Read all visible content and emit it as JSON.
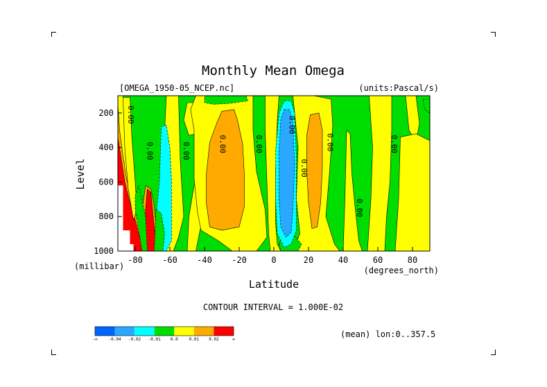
{
  "chart_data": {
    "type": "heatmap",
    "title": "Monthly Mean Omega",
    "dataset_label": "[OMEGA_1950-05_NCEP.nc]",
    "units_label": "(units:Pascal/s)",
    "xlabel": "Latitude",
    "ylabel": "Level",
    "x_unit": "(degrees_north)",
    "y_unit": "(millibar)",
    "xlim": [
      -90,
      90
    ],
    "ylim": [
      1000,
      100
    ],
    "x_ticks": [
      -80,
      -60,
      -40,
      -20,
      0,
      20,
      40,
      60,
      80
    ],
    "x_tick_labels": [
      "-80",
      "-60",
      "-40",
      "-20",
      "0",
      "20",
      "40",
      "60",
      "80"
    ],
    "y_ticks": [
      200,
      400,
      600,
      800,
      1000
    ],
    "y_tick_labels": [
      "200",
      "400",
      "600",
      "800",
      "1000"
    ],
    "contour_interval_text": "CONTOUR INTERVAL = 1.000E-02",
    "mean_note": "(mean) lon:0..357.5",
    "contour_labels": [
      "0.00"
    ],
    "colorbar": {
      "colors": [
        "#0064ff",
        "#2aa8ff",
        "#00ffff",
        "#00dd00",
        "#ffff00",
        "#ffaa00",
        "#ff0000"
      ],
      "labels": [
        "-∞",
        "-0.04",
        "-0.02",
        "-0.01",
        "0.0",
        "0.01",
        "0.02",
        "∞"
      ]
    },
    "background_color": "#00dd00",
    "regions": [
      {
        "value": 0.005,
        "color": "#ffff00",
        "poly": [
          [
            -90,
            100
          ],
          [
            -87,
            100
          ],
          [
            -86,
            230
          ],
          [
            -84,
            420
          ],
          [
            -82,
            560
          ],
          [
            -80,
            680
          ],
          [
            -77,
            780
          ],
          [
            -74,
            870
          ],
          [
            -71,
            960
          ],
          [
            -70,
            1000
          ],
          [
            -90,
            1000
          ]
        ]
      },
      {
        "value": 0.015,
        "color": "#ffaa00",
        "poly": [
          [
            -90,
            150
          ],
          [
            -89,
            300
          ],
          [
            -87,
            450
          ],
          [
            -85,
            580
          ],
          [
            -82,
            700
          ],
          [
            -79,
            810
          ],
          [
            -76,
            900
          ],
          [
            -73,
            990
          ],
          [
            -73,
            1000
          ],
          [
            -90,
            1000
          ]
        ]
      },
      {
        "value": 0.025,
        "color": "#ff0000",
        "poly": [
          [
            -90,
            340
          ],
          [
            -88,
            470
          ],
          [
            -86,
            600
          ],
          [
            -83,
            720
          ],
          [
            -80,
            820
          ],
          [
            -78,
            900
          ],
          [
            -76,
            960
          ],
          [
            -75,
            1000
          ],
          [
            -90,
            1000
          ]
        ]
      },
      {
        "value": 0.015,
        "color": "#ffaa00",
        "poly": [
          [
            -74,
            620
          ],
          [
            -71,
            640
          ],
          [
            -69,
            740
          ],
          [
            -68,
            860
          ],
          [
            -67,
            960
          ],
          [
            -68,
            1000
          ],
          [
            -74,
            1000
          ],
          [
            -76,
            930
          ],
          [
            -76,
            760
          ]
        ]
      },
      {
        "value": 0.025,
        "color": "#ff0000",
        "poly": [
          [
            -73,
            640
          ],
          [
            -71,
            660
          ],
          [
            -70,
            760
          ],
          [
            -69,
            860
          ],
          [
            -68,
            950
          ],
          [
            -69,
            1000
          ],
          [
            -73,
            1000
          ],
          [
            -74,
            900
          ],
          [
            -74,
            760
          ]
        ]
      },
      {
        "value": 0.005,
        "color": "#ffff00",
        "poly": [
          [
            -87,
            110
          ],
          [
            -83,
            110
          ],
          [
            -82,
            330
          ],
          [
            -80,
            600
          ],
          [
            -79,
            760
          ],
          [
            -81,
            820
          ],
          [
            -84,
            640
          ],
          [
            -86,
            400
          ]
        ]
      },
      {
        "value": -0.005,
        "color": "#00dd00",
        "poly": [
          [
            -80,
            680
          ],
          [
            -78,
            620
          ],
          [
            -76,
            700
          ],
          [
            -74,
            800
          ],
          [
            -73,
            1000
          ],
          [
            -76,
            1000
          ],
          [
            -78,
            880
          ],
          [
            -80,
            760
          ]
        ]
      },
      {
        "value": 0.005,
        "color": "#ffff00",
        "poly": [
          [
            -62,
            100
          ],
          [
            -55,
            100
          ],
          [
            -54,
            480
          ],
          [
            -52,
            800
          ],
          [
            -55,
            920
          ],
          [
            -58,
            1000
          ],
          [
            -62,
            1000
          ],
          [
            -62,
            600
          ],
          [
            -63,
            300
          ]
        ]
      },
      {
        "value": 0.005,
        "color": "#ffff00",
        "poly": [
          [
            -50,
            140
          ],
          [
            -42,
            140
          ],
          [
            -41,
            250
          ],
          [
            -44,
            320
          ],
          [
            -49,
            330
          ],
          [
            -52,
            240
          ]
        ]
      },
      {
        "value": 0.005,
        "color": "#ffff00",
        "poly": [
          [
            -46,
            620
          ],
          [
            -43,
            600
          ],
          [
            -41,
            800
          ],
          [
            -45,
            1000
          ],
          [
            -50,
            1000
          ],
          [
            -49,
            800
          ]
        ]
      },
      {
        "value": -0.015,
        "color": "#00ffff",
        "poly": [
          [
            -65,
            280
          ],
          [
            -62,
            270
          ],
          [
            -60,
            400
          ],
          [
            -59,
            600
          ],
          [
            -59,
            800
          ],
          [
            -59,
            940
          ],
          [
            -62,
            1000
          ],
          [
            -65,
            1000
          ],
          [
            -67,
            950
          ],
          [
            -68,
            800
          ],
          [
            -66,
            600
          ]
        ]
      },
      {
        "value": -0.005,
        "color": "#00dd00",
        "poly": [
          [
            -68,
            760
          ],
          [
            -65,
            780
          ],
          [
            -63,
            900
          ],
          [
            -64,
            1000
          ],
          [
            -69,
            1000
          ]
        ]
      },
      {
        "value": 0.005,
        "color": "#ffff00",
        "poly": [
          [
            -45,
            100
          ],
          [
            -12,
            100
          ],
          [
            -12,
            300
          ],
          [
            -10,
            540
          ],
          [
            -5,
            760
          ],
          [
            -4,
            920
          ],
          [
            -10,
            1000
          ],
          [
            -24,
            1000
          ],
          [
            -32,
            940
          ],
          [
            -42,
            880
          ],
          [
            -44,
            780
          ],
          [
            -46,
            580
          ],
          [
            -46,
            300
          ],
          [
            -48,
            180
          ]
        ]
      },
      {
        "value": -0.005,
        "color": "#00dd00",
        "poly": [
          [
            -40,
            100
          ],
          [
            -16,
            100
          ],
          [
            -15,
            130
          ],
          [
            -26,
            145
          ],
          [
            -35,
            150
          ],
          [
            -40,
            140
          ]
        ]
      },
      {
        "value": 0.015,
        "color": "#ffaa00",
        "poly": [
          [
            -30,
            190
          ],
          [
            -23,
            180
          ],
          [
            -21,
            240
          ],
          [
            -18,
            380
          ],
          [
            -17,
            560
          ],
          [
            -17,
            740
          ],
          [
            -20,
            860
          ],
          [
            -30,
            880
          ],
          [
            -37,
            860
          ],
          [
            -39,
            720
          ],
          [
            -39,
            560
          ],
          [
            -37,
            370
          ],
          [
            -33,
            260
          ]
        ]
      },
      {
        "value": 0.005,
        "color": "#ffff00",
        "poly": [
          [
            -5,
            100
          ],
          [
            3,
            100
          ],
          [
            2,
            240
          ],
          [
            1,
            520
          ],
          [
            1,
            840
          ],
          [
            2,
            960
          ],
          [
            4,
            1000
          ],
          [
            -2,
            1000
          ],
          [
            -3,
            900
          ],
          [
            -4,
            600
          ],
          [
            -5,
            300
          ]
        ]
      },
      {
        "value": 0.005,
        "color": "#ffff00",
        "poly": [
          [
            11,
            100
          ],
          [
            23,
            100
          ],
          [
            33,
            120
          ],
          [
            34,
            270
          ],
          [
            32,
            560
          ],
          [
            30,
            800
          ],
          [
            35,
            960
          ],
          [
            38,
            1000
          ],
          [
            11,
            1000
          ],
          [
            15,
            900
          ],
          [
            13,
            700
          ],
          [
            14,
            400
          ]
        ]
      },
      {
        "value": 0.015,
        "color": "#ffaa00",
        "poly": [
          [
            21,
            210
          ],
          [
            26,
            200
          ],
          [
            28,
            300
          ],
          [
            28,
            520
          ],
          [
            27,
            720
          ],
          [
            25,
            860
          ],
          [
            22,
            870
          ],
          [
            20,
            720
          ],
          [
            19,
            540
          ],
          [
            19,
            330
          ]
        ]
      },
      {
        "value": -0.005,
        "color": "#00dd00",
        "poly": [
          [
            3,
            960
          ],
          [
            5,
            900
          ],
          [
            10,
            890
          ],
          [
            16,
            960
          ],
          [
            14,
            1000
          ],
          [
            4,
            1000
          ]
        ]
      },
      {
        "value": -0.015,
        "color": "#00ffff",
        "poly": [
          [
            6,
            130
          ],
          [
            10,
            130
          ],
          [
            12,
            200
          ],
          [
            13,
            460
          ],
          [
            13,
            700
          ],
          [
            13,
            880
          ],
          [
            10,
            960
          ],
          [
            6,
            980
          ],
          [
            2,
            900
          ],
          [
            1,
            700
          ],
          [
            1,
            420
          ],
          [
            3,
            200
          ]
        ]
      },
      {
        "value": -0.03,
        "color": "#2aa8ff",
        "poly": [
          [
            6,
            180
          ],
          [
            9,
            180
          ],
          [
            11,
            260
          ],
          [
            12,
            500
          ],
          [
            11,
            760
          ],
          [
            10,
            890
          ],
          [
            7,
            920
          ],
          [
            4,
            860
          ],
          [
            3,
            700
          ],
          [
            3,
            420
          ],
          [
            4,
            240
          ]
        ]
      },
      {
        "value": 0.005,
        "color": "#ffff00",
        "poly": [
          [
            42,
            300
          ],
          [
            44,
            320
          ],
          [
            45,
            550
          ],
          [
            47,
            760
          ],
          [
            49,
            940
          ],
          [
            51,
            1000
          ],
          [
            40,
            1000
          ],
          [
            41,
            700
          ]
        ]
      },
      {
        "value": 0.005,
        "color": "#ffff00",
        "poly": [
          [
            55,
            100
          ],
          [
            68,
            100
          ],
          [
            68,
            300
          ],
          [
            67,
            600
          ],
          [
            65,
            800
          ],
          [
            64,
            1000
          ],
          [
            54,
            1000
          ],
          [
            56,
            700
          ],
          [
            57,
            400
          ]
        ]
      },
      {
        "value": 0.005,
        "color": "#ffff00",
        "poly": [
          [
            76,
            100
          ],
          [
            82,
            100
          ],
          [
            84,
            260
          ],
          [
            82,
            370
          ],
          [
            78,
            300
          ]
        ]
      },
      {
        "value": 0.005,
        "color": "#ffff00",
        "poly": [
          [
            73,
            340
          ],
          [
            82,
            320
          ],
          [
            90,
            360
          ],
          [
            90,
            1000
          ],
          [
            70,
            1000
          ],
          [
            72,
            700
          ]
        ]
      },
      {
        "value": -0.005,
        "color": "#00dd00",
        "poly": [
          [
            86,
            120
          ],
          [
            90,
            120
          ],
          [
            90,
            200
          ],
          [
            87,
            180
          ]
        ]
      }
    ],
    "blank_cells": [
      {
        "lon0": -90,
        "lon1": -87,
        "p0": 620,
        "p1": 1000
      },
      {
        "lon0": -87,
        "lon1": -83,
        "p0": 880,
        "p1": 1000
      },
      {
        "lon0": -83,
        "lon1": -81,
        "p0": 960,
        "p1": 1000
      }
    ],
    "zero_contour_label_positions": [
      [
        -73,
        420
      ],
      [
        -52,
        420
      ],
      [
        -31,
        380
      ],
      [
        -84,
        210
      ],
      [
        -10,
        380
      ],
      [
        9,
        270
      ],
      [
        16,
        520
      ],
      [
        31,
        370
      ],
      [
        48,
        750
      ],
      [
        68,
        380
      ]
    ]
  }
}
